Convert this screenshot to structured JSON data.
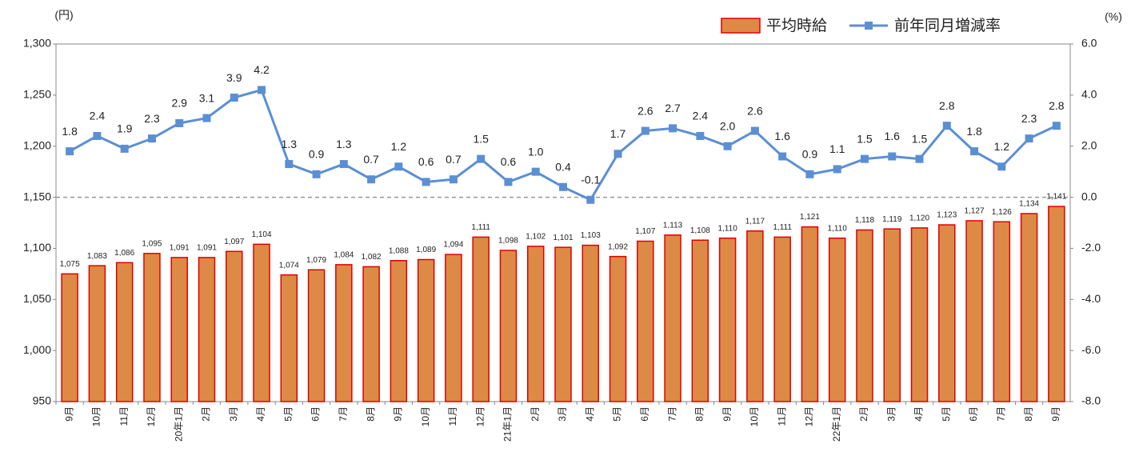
{
  "chart_data": {
    "type": "bar_line",
    "y_unit": "(円)",
    "y2_unit": "(%)",
    "categories": [
      "9月",
      "10月",
      "11月",
      "12月",
      "20年1月",
      "2月",
      "3月",
      "4月",
      "5月",
      "6月",
      "7月",
      "8月",
      "9月",
      "10月",
      "11月",
      "12月",
      "21年1月",
      "2月",
      "3月",
      "4月",
      "5月",
      "6月",
      "7月",
      "8月",
      "9月",
      "10月",
      "11月",
      "12月",
      "22年1月",
      "2月",
      "3月",
      "4月",
      "5月",
      "6月",
      "7月",
      "8月",
      "9月"
    ],
    "series": [
      {
        "name": "平均時給",
        "type": "bar",
        "color": "#dc8a45",
        "edge_color": "#e00000",
        "values": [
          1075,
          1083,
          1086,
          1095,
          1091,
          1091,
          1097,
          1104,
          1074,
          1079,
          1084,
          1082,
          1088,
          1089,
          1094,
          1111,
          1098,
          1102,
          1101,
          1103,
          1092,
          1107,
          1113,
          1108,
          1110,
          1117,
          1111,
          1121,
          1110,
          1118,
          1119,
          1120,
          1123,
          1127,
          1126,
          1134,
          1141
        ],
        "value_labels": [
          "1,075",
          "1,083",
          "1,086",
          "1,095",
          "1,091",
          "1,091",
          "1,097",
          "1,104",
          "1,074",
          "1,079",
          "1,084",
          "1,082",
          "1,088",
          "1,089",
          "1,094",
          "1,111",
          "1,098",
          "1,102",
          "1,101",
          "1,103",
          "1,092",
          "1,107",
          "1,113",
          "1,108",
          "1,110",
          "1,117",
          "1,111",
          "1,121",
          "1,110",
          "1,118",
          "1,119",
          "1,120",
          "1,123",
          "1,127",
          "1,126",
          "1,134",
          "1,141"
        ]
      },
      {
        "name": "前年同月増減率",
        "type": "line",
        "axis": "y2",
        "color": "#5b8fd4",
        "values": [
          1.8,
          2.4,
          1.9,
          2.3,
          2.9,
          3.1,
          3.9,
          4.2,
          1.3,
          0.9,
          1.3,
          0.7,
          1.2,
          0.6,
          0.7,
          1.5,
          0.6,
          1.0,
          0.4,
          -0.1,
          1.7,
          2.6,
          2.7,
          2.4,
          2.0,
          2.6,
          1.6,
          0.9,
          1.1,
          1.5,
          1.6,
          1.5,
          2.8,
          1.8,
          1.2,
          2.3,
          2.8
        ],
        "value_labels": [
          "1.8",
          "2.4",
          "1.9",
          "2.3",
          "2.9",
          "3.1",
          "3.9",
          "4.2",
          "1.3",
          "0.9",
          "1.3",
          "0.7",
          "1.2",
          "0.6",
          "0.7",
          "1.5",
          "0.6",
          "1.0",
          "0.4",
          "-0.1",
          "1.7",
          "2.6",
          "2.7",
          "2.4",
          "2.0",
          "2.6",
          "1.6",
          "0.9",
          "1.1",
          "1.5",
          "1.6",
          "1.5",
          "2.8",
          "1.8",
          "1.2",
          "2.3",
          "2.8"
        ]
      }
    ],
    "ylim": [
      950,
      1300
    ],
    "yticks": [
      {
        "value": 950,
        "label": "950"
      },
      {
        "value": 1000,
        "label": "1,000"
      },
      {
        "value": 1050,
        "label": "1,050"
      },
      {
        "value": 1100,
        "label": "1,100"
      },
      {
        "value": 1150,
        "label": "1,150"
      },
      {
        "value": 1200,
        "label": "1,200"
      },
      {
        "value": 1250,
        "label": "1,250"
      },
      {
        "value": 1300,
        "label": "1,300"
      }
    ],
    "y2lim": [
      -8,
      6
    ],
    "y2ticks": [
      {
        "value": -8,
        "label": "-8.0"
      },
      {
        "value": -6,
        "label": "-6.0"
      },
      {
        "value": -4,
        "label": "-4.0"
      },
      {
        "value": -2,
        "label": "-2.0"
      },
      {
        "value": 0,
        "label": "0.0"
      },
      {
        "value": 2,
        "label": "2.0"
      },
      {
        "value": 4,
        "label": "4.0"
      },
      {
        "value": 6,
        "label": "6.0"
      }
    ],
    "zero_line": true,
    "legend": "top-right"
  }
}
